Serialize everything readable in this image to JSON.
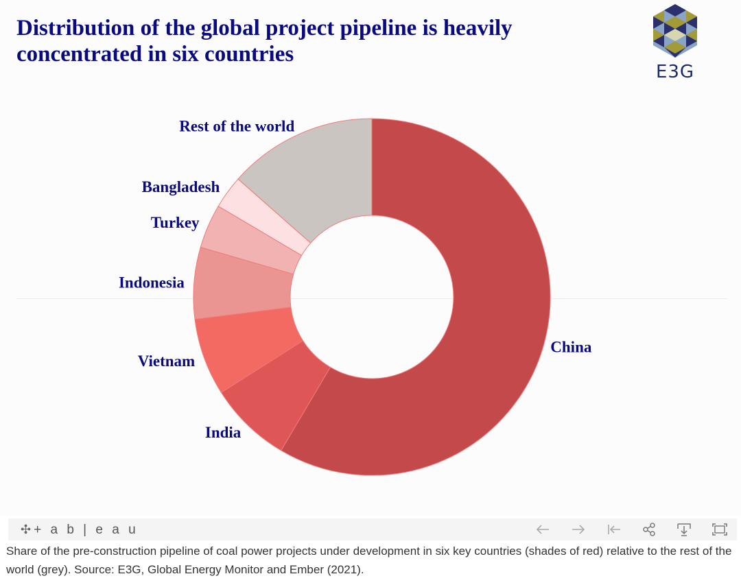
{
  "title": "Distribution of the global project pipeline is heavily concentrated in six countries",
  "logo": {
    "text": "E3G"
  },
  "chart_data": {
    "type": "pie",
    "donut": true,
    "categories": [
      "China",
      "India",
      "Vietnam",
      "Indonesia",
      "Turkey",
      "Bangladesh",
      "Rest of the world"
    ],
    "values": [
      58.5,
      7.5,
      7.0,
      6.5,
      4.0,
      3.0,
      13.5
    ],
    "colors": [
      "#c4494b",
      "#df5657",
      "#f36a63",
      "#ea9592",
      "#f1b2b2",
      "#fde0e2",
      "#cbc5c2"
    ],
    "legend": "labels on slices",
    "grid": false
  },
  "toolbar": {
    "brand": "+ a b | e a u"
  },
  "caption": "Share of the pre-construction pipeline of coal power projects under development in six key countries (shades of red) relative to the rest of the world (grey). Source: E3G, Global Energy Monitor and Ember (2021)."
}
